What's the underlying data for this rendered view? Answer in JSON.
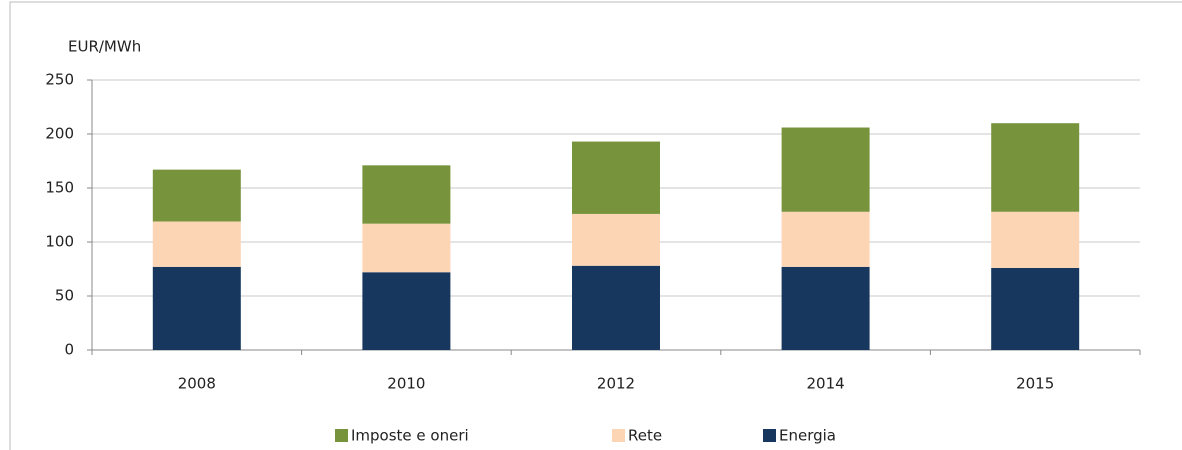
{
  "chart_data": {
    "type": "stacked_bar",
    "y_axis_label": "EUR/MWh",
    "categories": [
      "2008",
      "2010",
      "2012",
      "2014",
      "2015"
    ],
    "series": [
      {
        "name": "Energia",
        "color": "#17375e",
        "values": [
          77,
          72,
          78,
          77,
          76
        ]
      },
      {
        "name": "Rete",
        "color": "#fcd5b5",
        "values": [
          42,
          45,
          48,
          51,
          52
        ]
      },
      {
        "name": "Imposte e oneri",
        "color": "#77933c",
        "values": [
          48,
          54,
          67,
          78,
          82
        ]
      }
    ],
    "ylim": [
      0,
      250
    ],
    "yticks": [
      0,
      50,
      100,
      150,
      200,
      250
    ],
    "grid": true,
    "legend": "bottom"
  }
}
